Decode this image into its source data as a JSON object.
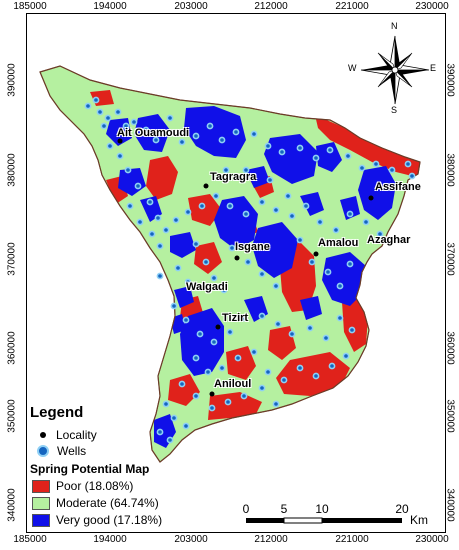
{
  "grid": {
    "x_ticks": [
      "185000",
      "194000",
      "203000",
      "212000",
      "221000",
      "230000"
    ],
    "y_ticks": [
      "390000",
      "380000",
      "370000",
      "360000",
      "350000",
      "340000"
    ]
  },
  "localities": {
    "ait_ouamoudi": "Ait Ouamoudi",
    "tagragra": "Tagragra",
    "assifane": "Assifane",
    "isgane": "Isgane",
    "amalou": "Amalou",
    "azaghar": "Azaghar",
    "walgadi": "Walgadi",
    "tizirt": "Tizirt",
    "aniloul": "Aniloul"
  },
  "legend": {
    "title": "Legend",
    "locality": "Locality",
    "wells": "Wells",
    "spm_title": "Spring Potential Map",
    "classes": [
      {
        "label": "Poor (18.08%)",
        "color": "#e0221b",
        "percent": 18.08
      },
      {
        "label": "Moderate (64.74%)",
        "color": "#b5f0a0",
        "percent": 64.74
      },
      {
        "label": "Very good (17.18%)",
        "color": "#1010e8",
        "percent": 17.18
      }
    ]
  },
  "scale_bar": {
    "labels": [
      "0",
      "5",
      "10",
      "20"
    ],
    "unit": "Km"
  },
  "north_arrow": {
    "n": "N",
    "s": "S",
    "e": "E",
    "w": "W"
  },
  "colors": {
    "poor": "#e0221b",
    "moderate": "#b5f0a0",
    "very_good": "#1010e8",
    "well_fill": "#1565c0",
    "well_ring": "#8fd0f5"
  }
}
